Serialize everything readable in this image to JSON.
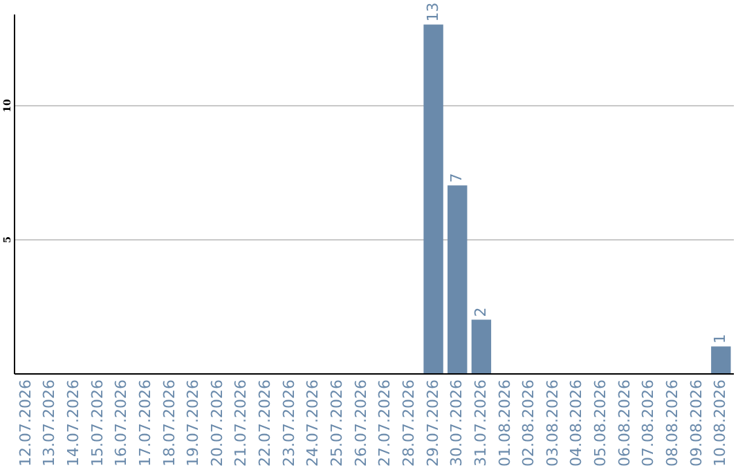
{
  "chart_data": {
    "type": "bar",
    "categories": [
      "12.07.2026",
      "13.07.2026",
      "14.07.2026",
      "15.07.2026",
      "16.07.2026",
      "17.07.2026",
      "18.07.2026",
      "19.07.2026",
      "20.07.2026",
      "21.07.2026",
      "22.07.2026",
      "23.07.2026",
      "24.07.2026",
      "25.07.2026",
      "26.07.2026",
      "27.07.2026",
      "28.07.2026",
      "29.07.2026",
      "30.07.2026",
      "31.07.2026",
      "01.08.2026",
      "02.08.2026",
      "03.08.2026",
      "04.08.2026",
      "05.08.2026",
      "06.08.2026",
      "07.08.2026",
      "08.08.2026",
      "09.08.2026",
      "10.08.2026"
    ],
    "values": [
      0,
      0,
      0,
      0,
      0,
      0,
      0,
      0,
      0,
      0,
      0,
      0,
      0,
      0,
      0,
      0,
      0,
      13,
      7,
      2,
      0,
      0,
      0,
      0,
      0,
      0,
      0,
      0,
      0,
      1
    ],
    "value_labels": [
      null,
      null,
      null,
      null,
      null,
      null,
      null,
      null,
      null,
      null,
      null,
      null,
      null,
      null,
      null,
      null,
      null,
      "13",
      "7",
      "2",
      null,
      null,
      null,
      null,
      null,
      null,
      null,
      null,
      null,
      "1"
    ],
    "color": "#6a8aab",
    "ylim": [
      0,
      13.4
    ],
    "yticks": [
      5,
      10
    ],
    "grid": "y"
  }
}
